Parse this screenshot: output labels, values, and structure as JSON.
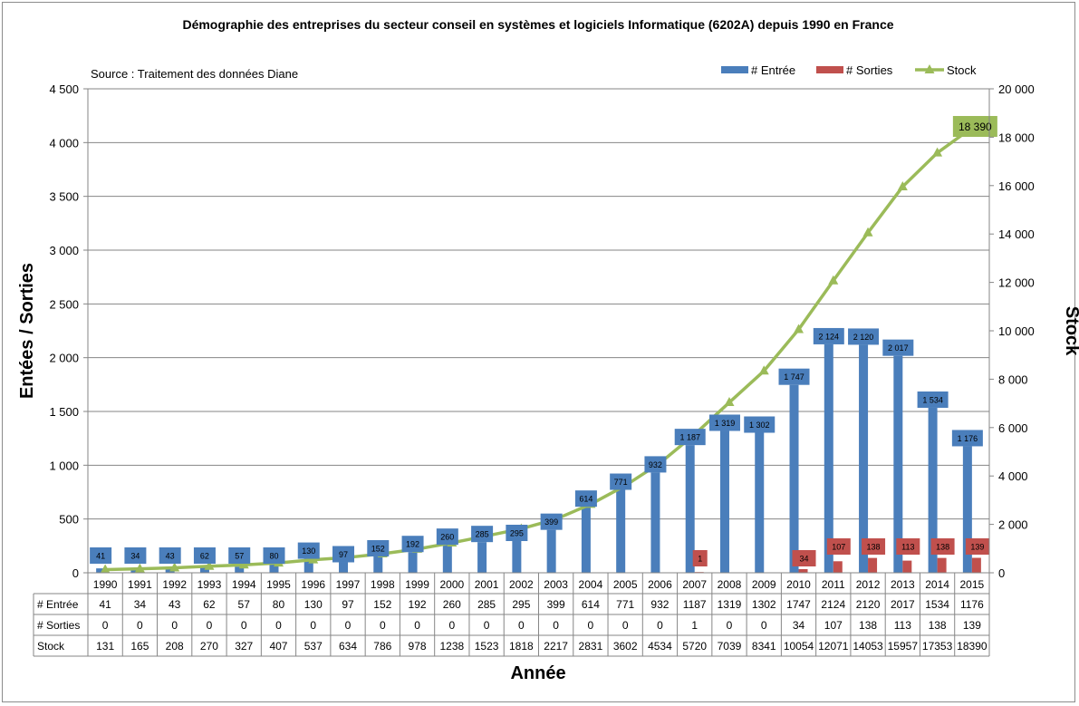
{
  "chart_data": {
    "type": "bar",
    "title": "Démographie des entreprises du secteur conseil en systèmes et logiciels Informatique (6202A) depuis 1990 en France",
    "annotation": "Source : Traitement des données Diane",
    "xlabel": "Année",
    "ylabel_left": "Entées / Sorties",
    "ylabel_right": "Stock",
    "ylim_left": [
      0,
      4500
    ],
    "ylim_right": [
      0,
      20000
    ],
    "yticks_left": [
      "0",
      "500",
      "1 000",
      "1 500",
      "2 000",
      "2 500",
      "3 000",
      "3 500",
      "4 000",
      "4 500"
    ],
    "yticks_right": [
      "0",
      "2 000",
      "4 000",
      "6 000",
      "8 000",
      "10 000",
      "12 000",
      "14 000",
      "16 000",
      "18 000",
      "20 000"
    ],
    "grid": "horizontal",
    "legend_position": "top-right",
    "categories": [
      "1990",
      "1991",
      "1992",
      "1993",
      "1994",
      "1995",
      "1996",
      "1997",
      "1998",
      "1999",
      "2000",
      "2001",
      "2002",
      "2003",
      "2004",
      "2005",
      "2006",
      "2007",
      "2008",
      "2009",
      "2010",
      "2011",
      "2012",
      "2013",
      "2014",
      "2015"
    ],
    "series": [
      {
        "name": "# Entrée",
        "table_label": "# Entrée",
        "kind": "bar",
        "axis": "left",
        "color": "#4a7ebb",
        "values": [
          41,
          34,
          43,
          62,
          57,
          80,
          130,
          97,
          152,
          192,
          260,
          285,
          295,
          399,
          614,
          771,
          932,
          1187,
          1319,
          1302,
          1747,
          2124,
          2120,
          2017,
          1534,
          1176
        ],
        "data_labels": [
          "41",
          "34",
          "43",
          "62",
          "57",
          "80",
          "130",
          "97",
          "152",
          "192",
          "260",
          "285",
          "295",
          "399",
          "614",
          "771",
          "932",
          "1 187",
          "1 319",
          "1 302",
          "1 747",
          "2 124",
          "2 120",
          "2 017",
          "1 534",
          "1 176"
        ]
      },
      {
        "name": "# Sorties",
        "table_label": "# Sorties",
        "kind": "bar",
        "axis": "left",
        "color": "#c0504d",
        "values": [
          0,
          0,
          0,
          0,
          0,
          0,
          0,
          0,
          0,
          0,
          0,
          0,
          0,
          0,
          0,
          0,
          0,
          1,
          0,
          0,
          34,
          107,
          138,
          113,
          138,
          139
        ],
        "data_labels": [
          "",
          "",
          "",
          "",
          "",
          "",
          "",
          "",
          "",
          "",
          "",
          "",
          "",
          "",
          "",
          "",
          "",
          "1",
          "",
          "",
          "34",
          "107",
          "138",
          "113",
          "138",
          "139"
        ]
      },
      {
        "name": "Stock",
        "table_label": "Stock",
        "kind": "line",
        "axis": "right",
        "color": "#9bbb59",
        "values": [
          131,
          165,
          208,
          270,
          327,
          407,
          537,
          634,
          786,
          978,
          1238,
          1523,
          1818,
          2217,
          2831,
          3602,
          4534,
          5720,
          7039,
          8341,
          10054,
          12071,
          14053,
          15957,
          17353,
          18390
        ],
        "end_label": "18 390"
      }
    ]
  }
}
